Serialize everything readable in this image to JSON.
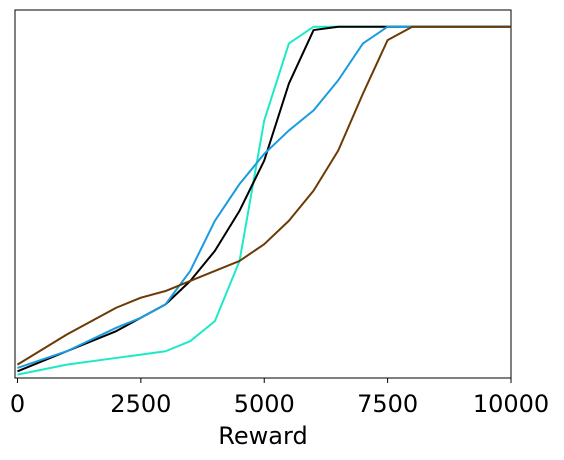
{
  "chart_data": {
    "type": "line",
    "xlabel": "Reward",
    "x": [
      0,
      1000,
      2000,
      2500,
      3000,
      3500,
      4000,
      4500,
      5000,
      5500,
      6000,
      6500,
      7000,
      7500,
      8000,
      10000
    ],
    "series": [
      {
        "color": "#1de9c8",
        "values": [
          -0.04,
          -0.01,
          0.01,
          0.02,
          0.03,
          0.06,
          0.12,
          0.3,
          0.72,
          0.95,
          1.0,
          1.0,
          1.0,
          1.0,
          1.0,
          1.0
        ]
      },
      {
        "color": "#000000",
        "values": [
          -0.03,
          0.03,
          0.09,
          0.13,
          0.17,
          0.24,
          0.33,
          0.45,
          0.6,
          0.83,
          0.99,
          1.0,
          1.0,
          1.0,
          1.0,
          1.0
        ]
      },
      {
        "color": "#1a9be0",
        "values": [
          -0.02,
          0.03,
          0.1,
          0.13,
          0.17,
          0.27,
          0.42,
          0.53,
          0.62,
          0.69,
          0.75,
          0.84,
          0.95,
          1.0,
          1.0,
          1.0
        ]
      },
      {
        "color": "#6b3a06",
        "values": [
          -0.01,
          0.08,
          0.16,
          0.19,
          0.21,
          0.24,
          0.27,
          0.3,
          0.35,
          0.42,
          0.51,
          0.63,
          0.8,
          0.96,
          1.0,
          1.0
        ]
      }
    ],
    "xlim": [
      -50,
      10000
    ],
    "xticks": [
      0,
      2500,
      5000,
      7500,
      10000
    ],
    "ylim": [
      -0.05,
      1.05
    ],
    "grid": false
  }
}
